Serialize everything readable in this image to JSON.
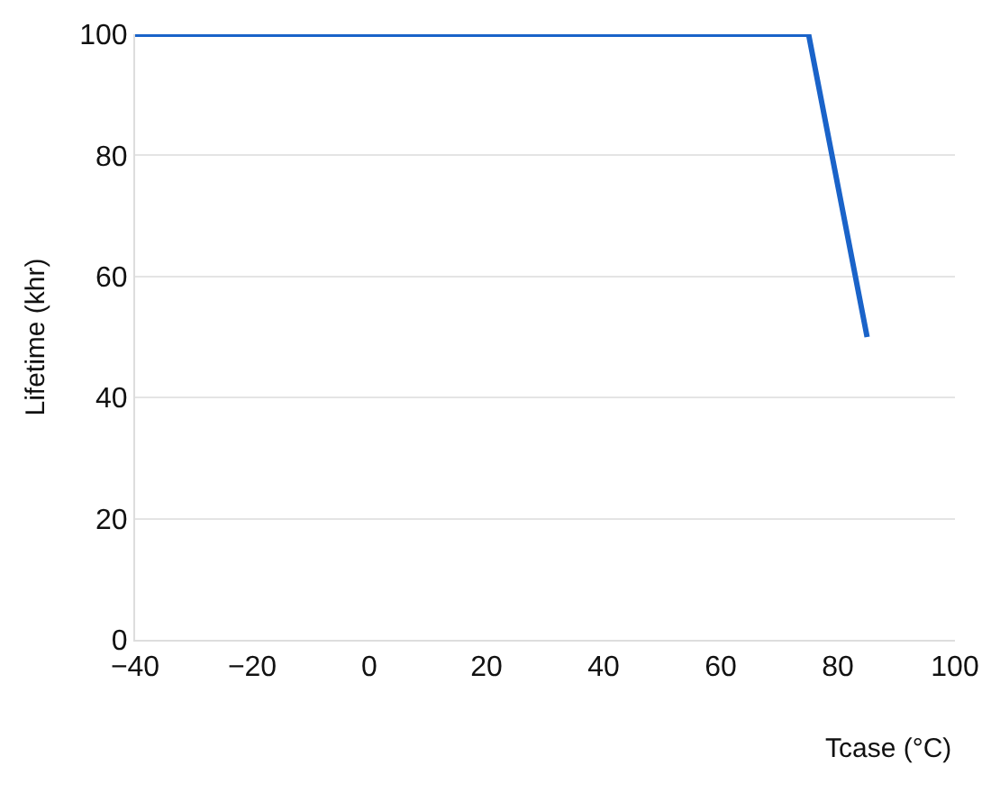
{
  "chart_data": {
    "type": "line",
    "xlabel": "Tcase (°C)",
    "ylabel": "Lifetime (khr)",
    "x": [
      -40,
      75,
      85
    ],
    "series": [
      {
        "color": "#1a63c9",
        "values": [
          100,
          100,
          50
        ]
      }
    ],
    "xlim": [
      -40,
      100
    ],
    "xticks": [
      -40,
      -20,
      0,
      20,
      40,
      60,
      80,
      100
    ],
    "ylim": [
      0,
      100
    ],
    "yticks": [
      0,
      20,
      40,
      60,
      80,
      100
    ],
    "grid": "y",
    "marker": "none",
    "line_style": "solid"
  }
}
